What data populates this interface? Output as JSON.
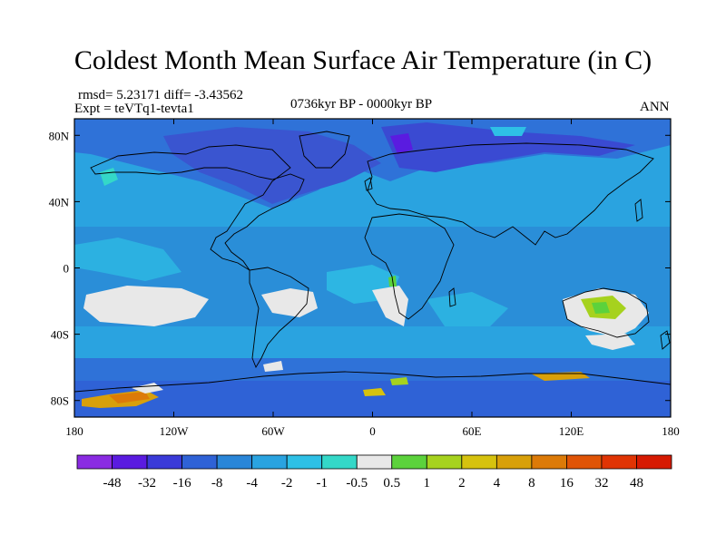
{
  "title": "Coldest Month Mean Surface Air Temperature (in C)",
  "stats": "rmsd= 5.23171 diff= -3.43562",
  "experiment": "Expt = teVTq1-tevta1",
  "period": "0736kyr BP - 0000kyr BP",
  "season": "ANN",
  "chart_data": {
    "type": "heatmap",
    "x_tick_labels": [
      "180",
      "120W",
      "60W",
      "0",
      "60E",
      "120E",
      "180"
    ],
    "y_tick_labels": [
      "80N",
      "40N",
      "0",
      "40S",
      "80S"
    ],
    "xlim": [
      -180,
      180
    ],
    "ylim": [
      -90,
      90
    ],
    "x_ticks": [
      -180,
      -120,
      -60,
      0,
      60,
      120,
      180
    ],
    "y_ticks": [
      80,
      40,
      0,
      -40,
      -80
    ],
    "colorbar": {
      "labels": [
        "-48",
        "-32",
        "-16",
        "-8",
        "-4",
        "-2",
        "-1",
        "-0.5",
        "0.5",
        "1",
        "2",
        "4",
        "8",
        "16",
        "32",
        "48"
      ],
      "colors": [
        "#8a2be2",
        "#5a1be0",
        "#3a3ad8",
        "#2f62d6",
        "#2a86d8",
        "#2aa3e0",
        "#2ec0e6",
        "#34d8c8",
        "#e8e8e8",
        "#5cd23c",
        "#a6d21e",
        "#d6c20e",
        "#d8a00a",
        "#dc7a08",
        "#e05406",
        "#e03404",
        "#d61a02"
      ]
    }
  }
}
